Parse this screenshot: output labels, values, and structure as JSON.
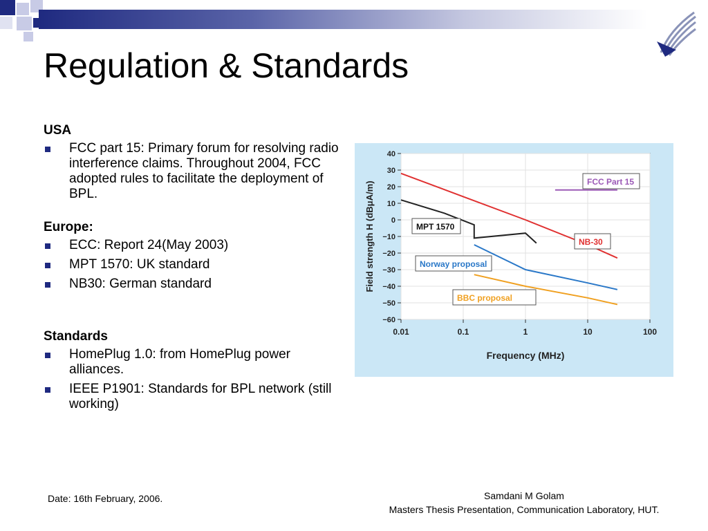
{
  "slide": {
    "title": "Regulation & Standards",
    "brand_color": "#1f2a80"
  },
  "sections": {
    "usa": {
      "heading": "USA",
      "items": [
        "FCC part 15: Primary forum for resolving radio interference claims. Throughout 2004, FCC adopted rules to facilitate the deployment of BPL."
      ]
    },
    "europe": {
      "heading": "Europe:",
      "items": [
        "ECC: Report 24(May 2003)",
        "MPT 1570: UK standard",
        "NB30: German standard"
      ]
    },
    "standards": {
      "heading": "Standards",
      "items": [
        "HomePlug 1.0: from HomePlug power alliances.",
        "IEEE P1901: Standards for BPL network (still working)"
      ]
    }
  },
  "footer": {
    "date": "Date: 16th February, 2006.",
    "author": "Samdani M Golam",
    "affiliation": "Masters Thesis Presentation, Communication Laboratory, HUT."
  },
  "chart_data": {
    "type": "line",
    "title": "",
    "xlabel": "Frequency (MHz)",
    "ylabel": "Field strength H (dBμA/m)",
    "x_scale": "log",
    "xlim": [
      0.01,
      100
    ],
    "ylim": [
      -60,
      40
    ],
    "x_ticks": [
      0.01,
      0.1,
      1,
      10,
      100
    ],
    "x_tick_labels": [
      "0.01",
      "0.1",
      "1",
      "10",
      "100"
    ],
    "y_ticks": [
      40,
      30,
      20,
      10,
      0,
      -10,
      -20,
      -30,
      -40,
      -50,
      -60
    ],
    "y_tick_labels": [
      "40",
      "30",
      "20",
      "10",
      "0",
      "−10",
      "−20",
      "−30",
      "−40",
      "−50",
      "−60"
    ],
    "background": "#cbe7f6",
    "series": [
      {
        "name": "FCC Part 15",
        "color": "#9b59b6",
        "x": [
          3,
          30
        ],
        "y": [
          18,
          18
        ]
      },
      {
        "name": "NB-30",
        "color": "#e03030",
        "x": [
          0.01,
          0.1,
          1,
          10,
          30
        ],
        "y": [
          28,
          14,
          0,
          -15,
          -23
        ]
      },
      {
        "name": "MPT 1570",
        "color": "#222222",
        "x": [
          0.01,
          0.05,
          0.15,
          0.15,
          1,
          1.5
        ],
        "y": [
          12,
          4,
          -3,
          -11,
          -8,
          -14
        ]
      },
      {
        "name": "Norway proposal",
        "color": "#2a78c8",
        "x": [
          0.15,
          1,
          10,
          30
        ],
        "y": [
          -15,
          -30,
          -38,
          -42
        ]
      },
      {
        "name": "BBC proposal",
        "color": "#f0a020",
        "x": [
          0.15,
          1,
          10,
          30
        ],
        "y": [
          -33,
          -40,
          -47,
          -51
        ]
      }
    ]
  }
}
